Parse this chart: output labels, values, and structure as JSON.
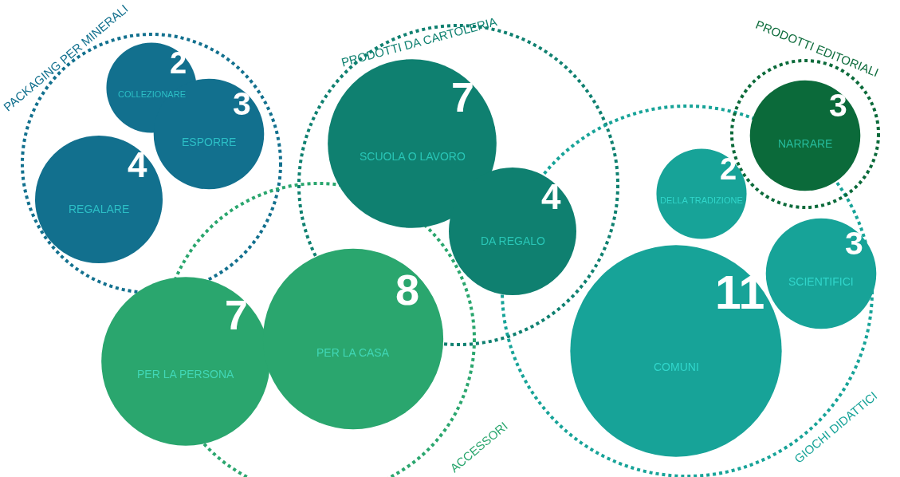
{
  "chart_data": {
    "type": "other",
    "data_labels": true,
    "categories": [
      "COLLEZIONARE",
      "ESPORRE",
      "REGALARE",
      "SCUOLA O LAVORO",
      "DA REGALO",
      "PER LA PERSONA",
      "PER LA CASA",
      "DELLA TRADIZIONE",
      "COMUNI",
      "SCIENTIFICI",
      "NARRARE"
    ],
    "series": [
      {
        "name": "PACKAGING PER MINERALI",
        "color": "#12708e",
        "values": [
          2,
          3,
          4,
          null,
          null,
          null,
          null,
          null,
          null,
          null,
          null
        ]
      },
      {
        "name": "PRODOTTI DA CARTOLERIA",
        "color": "#0f8070",
        "values": [
          null,
          null,
          null,
          7,
          4,
          null,
          null,
          null,
          null,
          null,
          null
        ]
      },
      {
        "name": "ACCESSORI",
        "color": "#2aa66e",
        "values": [
          null,
          null,
          null,
          null,
          null,
          7,
          8,
          null,
          null,
          null,
          null
        ]
      },
      {
        "name": "GIOCHI DIDATTICI",
        "color": "#17a398",
        "values": [
          null,
          null,
          null,
          null,
          null,
          null,
          null,
          2,
          11,
          3,
          null
        ]
      },
      {
        "name": "PRODOTTI EDITORIALI",
        "color": "#0b6a3a",
        "values": [
          null,
          null,
          null,
          null,
          null,
          null,
          null,
          null,
          null,
          null,
          3
        ]
      }
    ]
  }
}
